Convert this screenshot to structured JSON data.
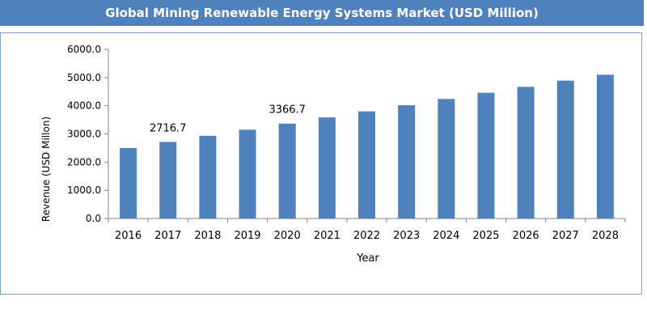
{
  "chart_data": {
    "type": "bar",
    "title": "Global Mining Renewable Energy Systems Market  (USD Million)",
    "xlabel": "Year",
    "ylabel": "Revenue (USD Millon)",
    "categories": [
      "2016",
      "2017",
      "2018",
      "2019",
      "2020",
      "2021",
      "2022",
      "2023",
      "2024",
      "2025",
      "2026",
      "2027",
      "2028"
    ],
    "values": [
      2500,
      2716.7,
      2935,
      3150,
      3366.7,
      3585,
      3800,
      4020,
      4240,
      4460,
      4670,
      4890,
      5100
    ],
    "ylim": [
      0,
      6000
    ],
    "yticks": [
      "0.0",
      "1000.0",
      "2000.0",
      "3000.0",
      "4000.0",
      "5000.0",
      "6000.0"
    ],
    "data_labels": [
      {
        "category": "2017",
        "text": "2716.7"
      },
      {
        "category": "2020",
        "text": "3366.7"
      }
    ],
    "bar_color": "#4f81bd",
    "grid": false,
    "legend": "none"
  }
}
